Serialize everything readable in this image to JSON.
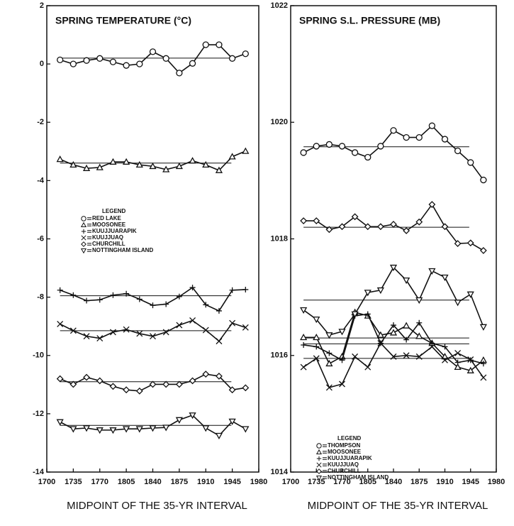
{
  "chart_data": [
    {
      "type": "line",
      "title": "SPRING TEMPERATURE (°C)",
      "x_label": "MIDPOINT OF THE 35-YR INTERVAL",
      "x": [
        1717.5,
        1735,
        1752.5,
        1770,
        1787.5,
        1805,
        1822.5,
        1840,
        1857.5,
        1875,
        1892.5,
        1910,
        1927.5,
        1945,
        1962.5
      ],
      "xlim": [
        1700,
        1980
      ],
      "xticks": [
        1700,
        1735,
        1770,
        1805,
        1840,
        1875,
        1910,
        1945,
        1980
      ],
      "ylim": [
        -14,
        2
      ],
      "yticks": [
        -14,
        -12,
        -10,
        -8,
        -6,
        -4,
        -2,
        0,
        2
      ],
      "legend_title": "LEGEND",
      "series": [
        {
          "name": "RED LAKE",
          "marker": "circle",
          "color": "#111111",
          "mean": 0.2,
          "values": [
            0.14,
            0,
            0.12,
            0.19,
            0.07,
            -0.05,
            0,
            0.42,
            0.19,
            -0.31,
            0.02,
            0.66,
            0.66,
            0.19,
            0.35
          ]
        },
        {
          "name": "MOOSONEE",
          "marker": "triangle",
          "color": "#111111",
          "mean": -3.4,
          "values": [
            -3.27,
            -3.46,
            -3.58,
            -3.55,
            -3.36,
            -3.36,
            -3.46,
            -3.51,
            -3.62,
            -3.51,
            -3.32,
            -3.46,
            -3.65,
            -3.18,
            -2.99
          ]
        },
        {
          "name": "KUUJJUARAPIK",
          "marker": "plus",
          "color": "#111111",
          "mean": -7.95,
          "values": [
            -7.76,
            -7.93,
            -8.12,
            -8.09,
            -7.93,
            -7.88,
            -8.07,
            -8.28,
            -8.24,
            -7.98,
            -7.67,
            -8.26,
            -8.47,
            -7.76,
            -7.74
          ]
        },
        {
          "name": "KUUJJUAQ",
          "marker": "x",
          "color": "#111111",
          "mean": -9.15,
          "values": [
            -8.92,
            -9.15,
            -9.34,
            -9.41,
            -9.2,
            -9.11,
            -9.25,
            -9.34,
            -9.2,
            -8.96,
            -8.8,
            -9.13,
            -9.51,
            -8.89,
            -9.04
          ]
        },
        {
          "name": "CHURCHILL",
          "marker": "diamond",
          "color": "#111111",
          "mean": -10.9,
          "values": [
            -10.8,
            -10.99,
            -10.75,
            -10.87,
            -11.06,
            -11.18,
            -11.22,
            -10.99,
            -10.99,
            -10.99,
            -10.87,
            -10.64,
            -10.71,
            -11.18,
            -11.11
          ]
        },
        {
          "name": "NOTTINGHAM ISLAND",
          "marker": "triangle-down",
          "color": "#111111",
          "mean": -12.4,
          "values": [
            -12.28,
            -12.52,
            -12.49,
            -12.56,
            -12.56,
            -12.52,
            -12.52,
            -12.49,
            -12.47,
            -12.21,
            -12.05,
            -12.49,
            -12.75,
            -12.26,
            -12.52
          ]
        }
      ]
    },
    {
      "type": "line",
      "title": "SPRING S.L. PRESSURE (MB)",
      "x_label": "MIDPOINT OF THE 35-YR INTERVAL",
      "x": [
        1717.5,
        1735,
        1752.5,
        1770,
        1787.5,
        1805,
        1822.5,
        1840,
        1857.5,
        1875,
        1892.5,
        1910,
        1927.5,
        1945,
        1962.5
      ],
      "xlim": [
        1700,
        1980
      ],
      "xticks": [
        1700,
        1735,
        1770,
        1805,
        1840,
        1875,
        1910,
        1945,
        1980
      ],
      "ylim": [
        1014,
        1022
      ],
      "yticks": [
        1014,
        1016,
        1018,
        1020,
        1022
      ],
      "legend_title": "LEGEND",
      "series": [
        {
          "name": "THOMPSON",
          "marker": "circle",
          "color": "#111111",
          "mean": 1019.58,
          "values": [
            1019.48,
            1019.59,
            1019.62,
            1019.59,
            1019.48,
            1019.4,
            1019.59,
            1019.86,
            1019.74,
            1019.74,
            1019.94,
            1019.71,
            1019.51,
            1019.31,
            1019.01
          ]
        },
        {
          "name": "MOOSONEE",
          "marker": "triangle",
          "color": "#111111",
          "mean": 1016.3,
          "values": [
            1016.31,
            1016.31,
            1015.86,
            1015.98,
            1016.74,
            1016.68,
            1016.35,
            1016.39,
            1016.51,
            1016.33,
            1016.21,
            1015.98,
            1015.8,
            1015.74,
            1015.92
          ]
        },
        {
          "name": "KUUJJUARAPIK",
          "marker": "plus",
          "color": "#111111",
          "mean": 1016.2,
          "values": [
            1016.18,
            1016.15,
            1016.04,
            1015.92,
            1016.68,
            1016.71,
            1016.21,
            1016.52,
            1016.27,
            1016.56,
            1016.21,
            1016.15,
            1015.88,
            1015.92,
            1015.86
          ]
        },
        {
          "name": "KUUJJUAQ",
          "marker": "x",
          "color": "#111111",
          "mean": 1015.95,
          "values": [
            1015.8,
            1015.95,
            1015.45,
            1015.51,
            1015.98,
            1015.8,
            1016.21,
            1015.98,
            1016,
            1015.98,
            1016.15,
            1015.92,
            1016.04,
            1015.93,
            1015.62
          ]
        },
        {
          "name": "CHURCHILL",
          "marker": "diamond",
          "color": "#111111",
          "mean": 1018.2,
          "values": [
            1018.31,
            1018.31,
            1018.16,
            1018.21,
            1018.38,
            1018.21,
            1018.21,
            1018.25,
            1018.14,
            1018.29,
            1018.59,
            1018.21,
            1017.92,
            1017.93,
            1017.8
          ]
        },
        {
          "name": "NOTTINGHAM ISLAND",
          "marker": "triangle-down",
          "color": "#111111",
          "mean": 1016.95,
          "values": [
            1016.78,
            1016.62,
            1016.35,
            1016.41,
            1016.71,
            1017.08,
            1017.12,
            1017.51,
            1017.29,
            1016.95,
            1017.45,
            1017.34,
            1016.91,
            1017.05,
            1016.49
          ]
        }
      ]
    }
  ]
}
